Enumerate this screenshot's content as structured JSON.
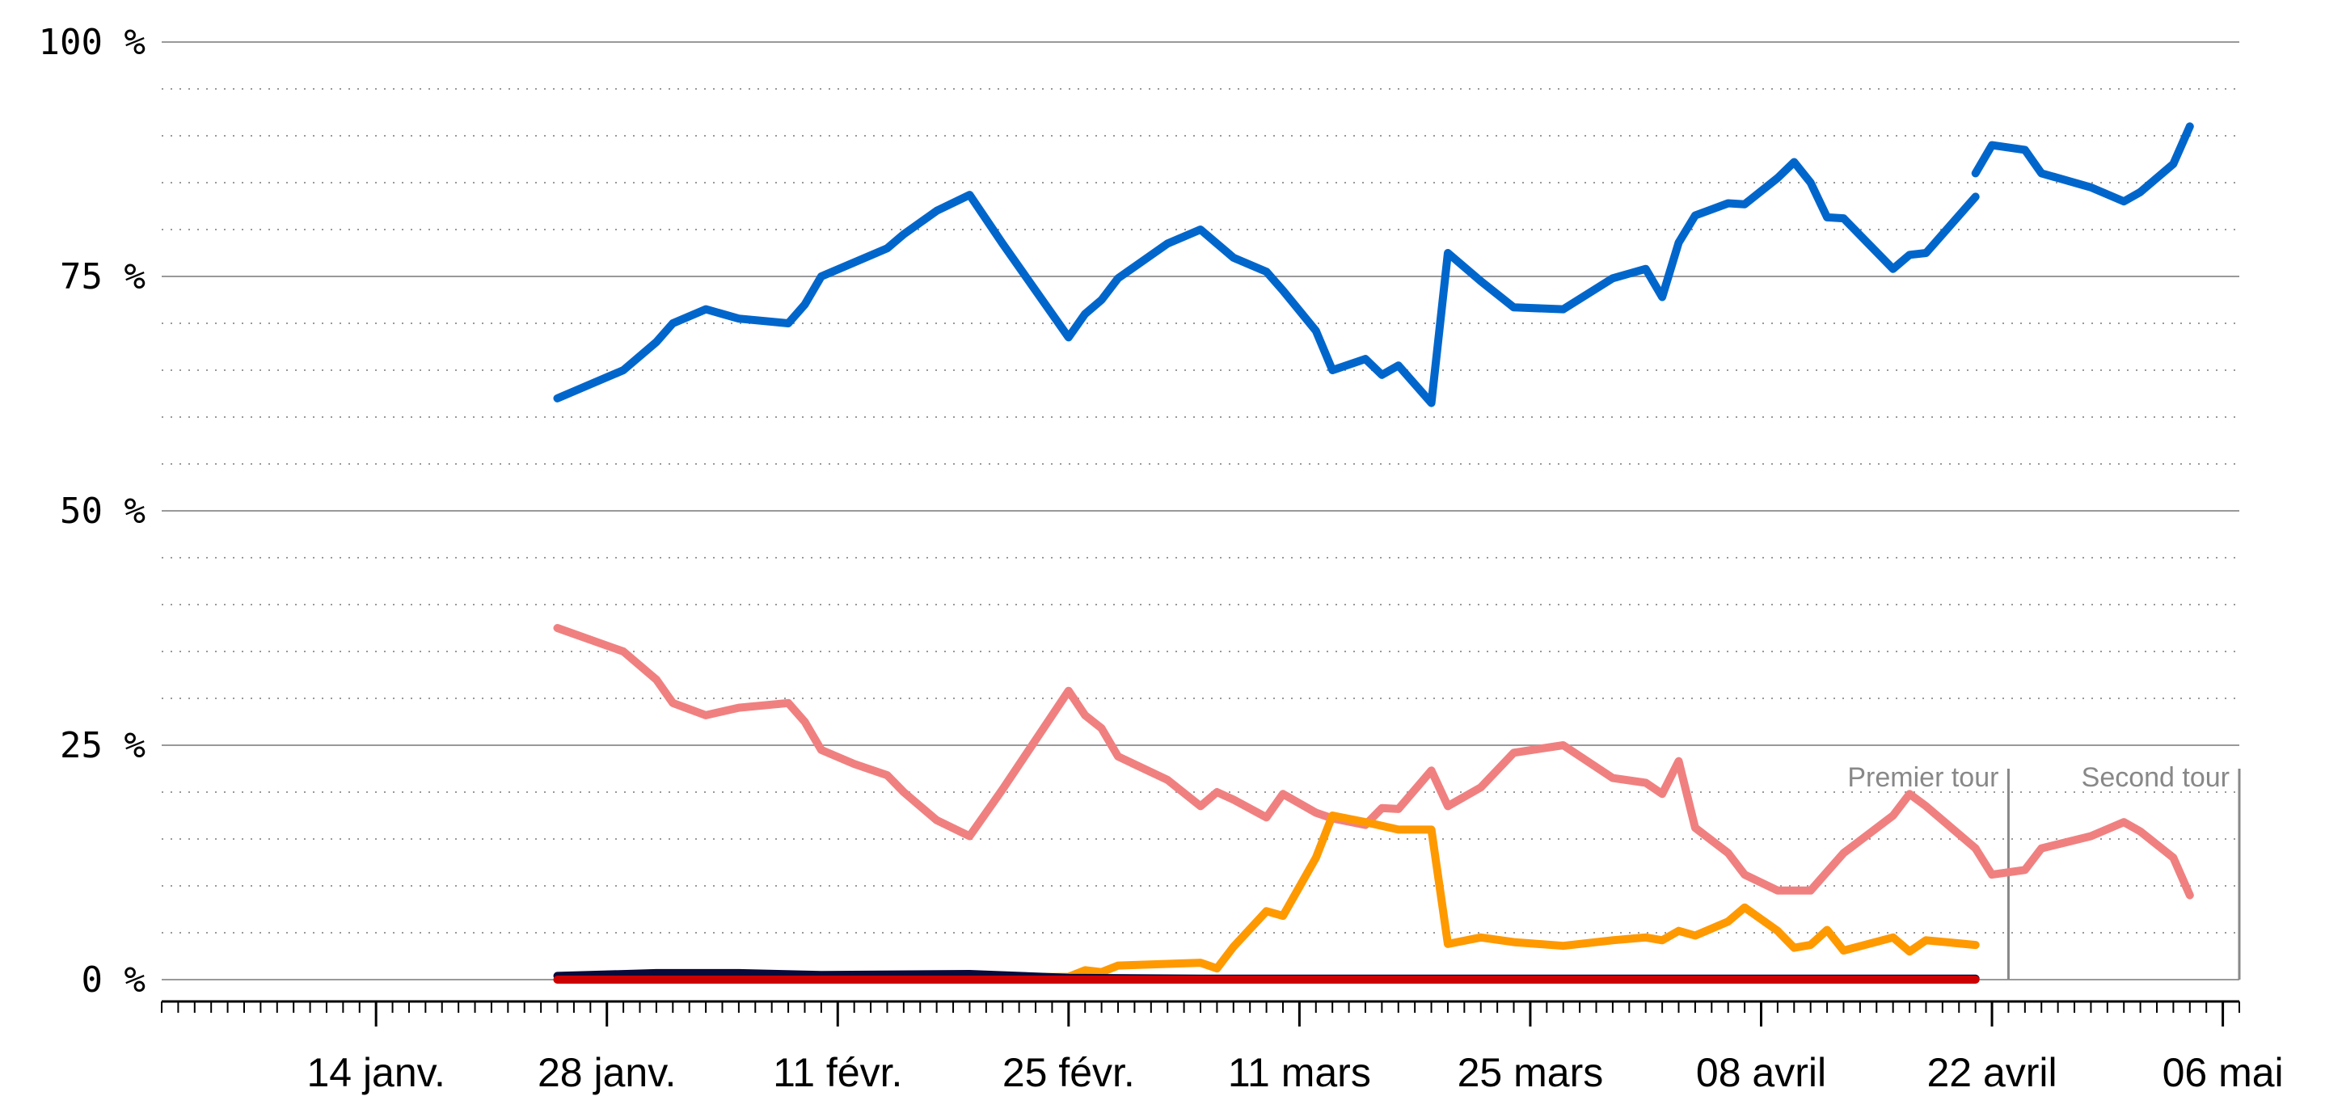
{
  "chart_data": {
    "type": "line",
    "x_axis": {
      "type": "date",
      "range": [
        "2017-01-01",
        "2017-05-07"
      ],
      "tick_labels": [
        {
          "date": "2017-01-14",
          "label": "14 janv."
        },
        {
          "date": "2017-01-28",
          "label": "28 janv."
        },
        {
          "date": "2017-02-11",
          "label": "11 févr."
        },
        {
          "date": "2017-02-25",
          "label": "25 févr."
        },
        {
          "date": "2017-03-11",
          "label": "11 mars"
        },
        {
          "date": "2017-03-25",
          "label": "25 mars"
        },
        {
          "date": "2017-04-08",
          "label": "08 avril"
        },
        {
          "date": "2017-04-22",
          "label": "22 avril"
        },
        {
          "date": "2017-05-06",
          "label": "06 mai"
        }
      ]
    },
    "y_axis": {
      "range": [
        0,
        100
      ],
      "major_ticks": [
        {
          "value": 0,
          "label": "0 %"
        },
        {
          "value": 25,
          "label": "25 %"
        },
        {
          "value": 50,
          "label": "50 %"
        },
        {
          "value": 75,
          "label": "75 %"
        },
        {
          "value": 100,
          "label": "100 %"
        }
      ],
      "minor_gridlines_every": 5
    },
    "phases": [
      {
        "label": "Premier tour",
        "end_date": "2017-04-23"
      },
      {
        "label": "Second tour",
        "end_date": "2017-05-07"
      }
    ],
    "series": [
      {
        "color": "#0066cc",
        "points": [
          [
            "2017-01-25",
            62
          ],
          [
            "2017-01-29",
            65
          ],
          [
            "2017-01-31",
            68
          ],
          [
            "2017-02-01",
            70
          ],
          [
            "2017-02-03",
            71.5
          ],
          [
            "2017-02-05",
            70.5
          ],
          [
            "2017-02-08",
            70
          ],
          [
            "2017-02-09",
            72
          ],
          [
            "2017-02-10",
            75
          ],
          [
            "2017-02-12",
            76.5
          ],
          [
            "2017-02-14",
            78
          ],
          [
            "2017-02-15",
            79.5
          ],
          [
            "2017-02-17",
            82
          ],
          [
            "2017-02-19",
            83.7
          ],
          [
            "2017-02-21",
            78.5
          ],
          [
            "2017-02-25",
            68.5
          ],
          [
            "2017-02-26",
            71
          ],
          [
            "2017-02-27",
            72.5
          ],
          [
            "2017-02-28",
            74.8
          ],
          [
            "2017-03-03",
            78.5
          ],
          [
            "2017-03-05",
            80
          ],
          [
            "2017-03-06",
            78.5
          ],
          [
            "2017-03-07",
            77
          ],
          [
            "2017-03-09",
            75.5
          ],
          [
            "2017-03-10",
            73.5
          ],
          [
            "2017-03-12",
            69.2
          ],
          [
            "2017-03-13",
            65
          ],
          [
            "2017-03-15",
            66.2
          ],
          [
            "2017-03-16",
            64.5
          ],
          [
            "2017-03-17",
            65.5
          ],
          [
            "2017-03-19",
            61.5
          ],
          [
            "2017-03-20",
            77.5
          ],
          [
            "2017-03-22",
            74.5
          ],
          [
            "2017-03-24",
            71.7
          ],
          [
            "2017-03-27",
            71.5
          ],
          [
            "2017-03-30",
            74.8
          ],
          [
            "2017-04-01",
            75.8
          ],
          [
            "2017-04-02",
            72.8
          ],
          [
            "2017-04-03",
            78.6
          ],
          [
            "2017-04-04",
            81.5
          ],
          [
            "2017-04-06",
            82.8
          ],
          [
            "2017-04-07",
            82.7
          ],
          [
            "2017-04-09",
            85.5
          ],
          [
            "2017-04-10",
            87.2
          ],
          [
            "2017-04-11",
            85
          ],
          [
            "2017-04-12",
            81.3
          ],
          [
            "2017-04-13",
            81.2
          ],
          [
            "2017-04-16",
            75.8
          ],
          [
            "2017-04-17",
            77.3
          ],
          [
            "2017-04-18",
            77.5
          ],
          [
            "2017-04-21",
            83.5
          ]
        ],
        "second_round": [
          [
            "2017-04-21",
            86
          ],
          [
            "2017-04-22",
            89
          ],
          [
            "2017-04-24",
            88.5
          ],
          [
            "2017-04-25",
            86
          ],
          [
            "2017-04-28",
            84.5
          ],
          [
            "2017-04-30",
            83
          ],
          [
            "2017-05-01",
            84
          ],
          [
            "2017-05-03",
            87
          ],
          [
            "2017-05-04",
            91
          ]
        ]
      },
      {
        "color": "#f08080",
        "points": [
          [
            "2017-01-25",
            37.5
          ],
          [
            "2017-01-29",
            35
          ],
          [
            "2017-01-31",
            32
          ],
          [
            "2017-02-01",
            29.5
          ],
          [
            "2017-02-03",
            28.2
          ],
          [
            "2017-02-05",
            29
          ],
          [
            "2017-02-08",
            29.5
          ],
          [
            "2017-02-09",
            27.5
          ],
          [
            "2017-02-10",
            24.5
          ],
          [
            "2017-02-12",
            23
          ],
          [
            "2017-02-14",
            21.8
          ],
          [
            "2017-02-15",
            20
          ],
          [
            "2017-02-17",
            17
          ],
          [
            "2017-02-19",
            15.3
          ],
          [
            "2017-02-21",
            20.3
          ],
          [
            "2017-02-25",
            30.8
          ],
          [
            "2017-02-26",
            28.2
          ],
          [
            "2017-02-27",
            26.8
          ],
          [
            "2017-02-28",
            23.8
          ],
          [
            "2017-03-03",
            21.3
          ],
          [
            "2017-03-05",
            18.5
          ],
          [
            "2017-03-06",
            20
          ],
          [
            "2017-03-07",
            19.2
          ],
          [
            "2017-03-09",
            17.3
          ],
          [
            "2017-03-10",
            19.8
          ],
          [
            "2017-03-12",
            17.8
          ],
          [
            "2017-03-13",
            17.2
          ],
          [
            "2017-03-15",
            16.5
          ],
          [
            "2017-03-16",
            18.3
          ],
          [
            "2017-03-17",
            18.2
          ],
          [
            "2017-03-19",
            22.3
          ],
          [
            "2017-03-20",
            18.5
          ],
          [
            "2017-03-22",
            20.5
          ],
          [
            "2017-03-24",
            24.2
          ],
          [
            "2017-03-27",
            25
          ],
          [
            "2017-03-30",
            21.5
          ],
          [
            "2017-04-01",
            21
          ],
          [
            "2017-04-02",
            19.8
          ],
          [
            "2017-04-03",
            23.3
          ],
          [
            "2017-04-04",
            16.2
          ],
          [
            "2017-04-06",
            13.5
          ],
          [
            "2017-04-07",
            11.2
          ],
          [
            "2017-04-09",
            9.5
          ],
          [
            "2017-04-10",
            9.5
          ],
          [
            "2017-04-11",
            9.5
          ],
          [
            "2017-04-12",
            11.5
          ],
          [
            "2017-04-13",
            13.5
          ],
          [
            "2017-04-16",
            17.5
          ],
          [
            "2017-04-17",
            19.8
          ],
          [
            "2017-04-18",
            18.5
          ],
          [
            "2017-04-21",
            14
          ]
        ],
        "second_round": [
          [
            "2017-04-21",
            14
          ],
          [
            "2017-04-22",
            11.2
          ],
          [
            "2017-04-24",
            11.7
          ],
          [
            "2017-04-25",
            14
          ],
          [
            "2017-04-28",
            15.3
          ],
          [
            "2017-04-30",
            16.8
          ],
          [
            "2017-05-01",
            15.8
          ],
          [
            "2017-05-03",
            13
          ],
          [
            "2017-05-04",
            9
          ]
        ]
      },
      {
        "color": "#ff9900",
        "points": [
          [
            "2017-01-25",
            0
          ],
          [
            "2017-02-10",
            0
          ],
          [
            "2017-02-25",
            0.3
          ],
          [
            "2017-02-26",
            1
          ],
          [
            "2017-02-27",
            0.8
          ],
          [
            "2017-02-28",
            1.5
          ],
          [
            "2017-03-05",
            1.8
          ],
          [
            "2017-03-06",
            1.2
          ],
          [
            "2017-03-07",
            3.5
          ],
          [
            "2017-03-09",
            7.3
          ],
          [
            "2017-03-10",
            6.8
          ],
          [
            "2017-03-12",
            13
          ],
          [
            "2017-03-13",
            17.5
          ],
          [
            "2017-03-15",
            16.8
          ],
          [
            "2017-03-17",
            16
          ],
          [
            "2017-03-19",
            16
          ],
          [
            "2017-03-20",
            3.8
          ],
          [
            "2017-03-22",
            4.5
          ],
          [
            "2017-03-24",
            4
          ],
          [
            "2017-03-27",
            3.6
          ],
          [
            "2017-03-30",
            4.2
          ],
          [
            "2017-04-01",
            4.5
          ],
          [
            "2017-04-02",
            4.2
          ],
          [
            "2017-04-03",
            5.2
          ],
          [
            "2017-04-04",
            4.7
          ],
          [
            "2017-04-06",
            6.2
          ],
          [
            "2017-04-07",
            7.7
          ],
          [
            "2017-04-09",
            5.2
          ],
          [
            "2017-04-10",
            3.4
          ],
          [
            "2017-04-11",
            3.7
          ],
          [
            "2017-04-12",
            5.3
          ],
          [
            "2017-04-13",
            3.1
          ],
          [
            "2017-04-16",
            4.5
          ],
          [
            "2017-04-17",
            3
          ],
          [
            "2017-04-18",
            4.2
          ],
          [
            "2017-04-21",
            3.7
          ]
        ]
      },
      {
        "color": "#0a0a3a",
        "points": [
          [
            "2017-01-25",
            0.4
          ],
          [
            "2017-01-31",
            0.7
          ],
          [
            "2017-02-05",
            0.7
          ],
          [
            "2017-02-10",
            0.5
          ],
          [
            "2017-02-19",
            0.6
          ],
          [
            "2017-02-25",
            0.2
          ],
          [
            "2017-03-05",
            0.1
          ],
          [
            "2017-04-21",
            0.1
          ]
        ]
      },
      {
        "color": "#cc0000",
        "points": [
          [
            "2017-01-25",
            0
          ],
          [
            "2017-04-21",
            0
          ]
        ]
      }
    ]
  }
}
